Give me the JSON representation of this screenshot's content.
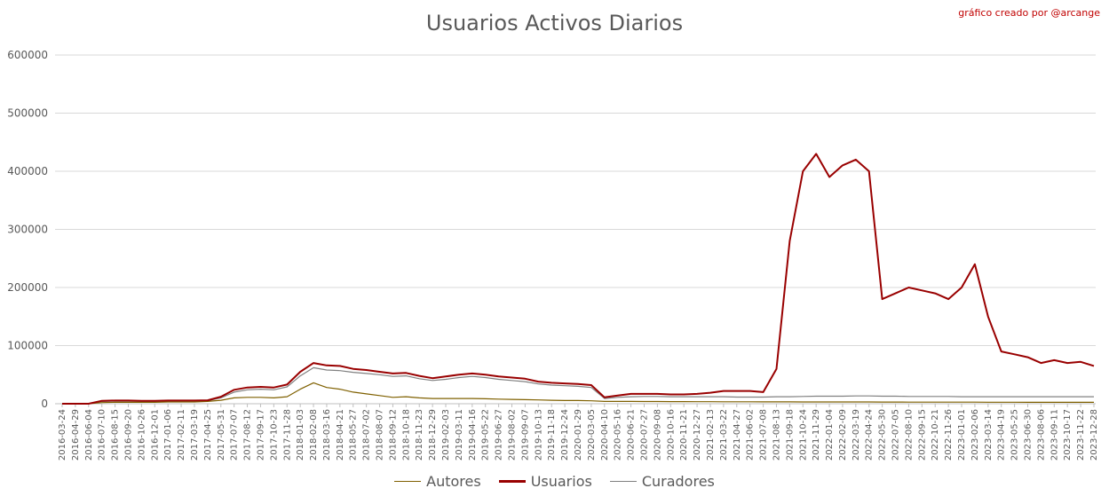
{
  "chart_data": {
    "type": "line",
    "title": "Usuarios Activos Diarios",
    "credit": "gráfico creado por @arcange",
    "ylim": [
      0,
      600000
    ],
    "y_ticks": [
      "0",
      "100000",
      "200000",
      "300000",
      "400000",
      "500000",
      "600000"
    ],
    "x_ticks": [
      "2016-03-24",
      "2016-04-29",
      "2016-06-04",
      "2016-07-10",
      "2016-08-15",
      "2016-09-20",
      "2016-10-26",
      "2016-12-01",
      "2017-01-06",
      "2017-02-11",
      "2017-03-19",
      "2017-04-25",
      "2017-05-31",
      "2017-07-07",
      "2017-08-12",
      "2017-09-17",
      "2017-10-23",
      "2017-11-28",
      "2018-01-03",
      "2018-02-08",
      "2018-03-16",
      "2018-04-21",
      "2018-05-27",
      "2018-07-02",
      "2018-08-07",
      "2018-09-12",
      "2018-10-18",
      "2018-11-23",
      "2018-12-29",
      "2019-02-03",
      "2019-03-11",
      "2019-04-16",
      "2019-05-22",
      "2019-06-27",
      "2019-08-02",
      "2019-09-07",
      "2019-10-13",
      "2019-11-18",
      "2019-12-24",
      "2020-01-29",
      "2020-03-05",
      "2020-04-10",
      "2020-05-16",
      "2020-06-21",
      "2020-07-27",
      "2020-09-08",
      "2020-10-16",
      "2020-11-21",
      "2020-12-27",
      "2021-02-13",
      "2021-03-22",
      "2021-04-27",
      "2021-06-02",
      "2021-07-08",
      "2021-08-13",
      "2021-09-18",
      "2021-10-24",
      "2021-11-29",
      "2022-01-04",
      "2022-02-09",
      "2022-03-19",
      "2022-04-24",
      "2022-05-30",
      "2022-07-05",
      "2022-08-10",
      "2022-09-15",
      "2022-10-21",
      "2022-11-26",
      "2023-01-01",
      "2023-02-06",
      "2023-03-14",
      "2023-04-19",
      "2023-05-25",
      "2023-06-30",
      "2023-08-06",
      "2023-09-11",
      "2023-10-17",
      "2023-11-22",
      "2023-12-28"
    ],
    "grid": true,
    "legend_position": "bottom",
    "series": [
      {
        "name": "Autores",
        "color": "#7f6000",
        "values": [
          0,
          0,
          0,
          2000,
          2500,
          2500,
          2500,
          2500,
          3000,
          3000,
          3000,
          4000,
          6000,
          10000,
          11000,
          11000,
          10000,
          12000,
          25000,
          36000,
          28000,
          25000,
          20000,
          17000,
          14000,
          11000,
          12000,
          10000,
          9000,
          9000,
          9000,
          9000,
          8500,
          8000,
          7500,
          7000,
          6500,
          6000,
          5500,
          5500,
          5000,
          4000,
          4000,
          4000,
          3800,
          3800,
          3600,
          3600,
          3500,
          3500,
          3400,
          3400,
          3300,
          3200,
          3200,
          3200,
          3100,
          3100,
          3000,
          3000,
          3000,
          3000,
          2900,
          2900,
          2800,
          2800,
          2800,
          2700,
          2700,
          2700,
          2600,
          2600,
          2600,
          2500,
          2500,
          2500,
          2400,
          2400,
          2400
        ]
      },
      {
        "name": "Usuarios",
        "color": "#990000",
        "values": [
          0,
          0,
          0,
          5000,
          5500,
          5500,
          5000,
          5000,
          5500,
          5500,
          5500,
          6000,
          12000,
          24000,
          28000,
          29000,
          28000,
          33000,
          55000,
          70000,
          66000,
          65000,
          60000,
          58000,
          55000,
          52000,
          53000,
          48000,
          44000,
          47000,
          50000,
          52000,
          50000,
          47000,
          45000,
          43000,
          38000,
          36000,
          35000,
          34000,
          32000,
          11000,
          14000,
          17000,
          17000,
          17000,
          16000,
          16000,
          17000,
          19000,
          22000,
          22000,
          22000,
          20000,
          60000,
          280000,
          400000,
          430000,
          390000,
          410000,
          420000,
          400000,
          180000,
          190000,
          200000,
          195000,
          190000,
          180000,
          200000,
          240000,
          150000,
          90000,
          85000,
          80000,
          70000,
          75000,
          70000,
          72000,
          65000
        ]
      },
      {
        "name": "Curadores",
        "color": "#808080",
        "values": [
          0,
          0,
          0,
          4000,
          4500,
          4500,
          4000,
          4000,
          4500,
          4500,
          4500,
          5000,
          10000,
          20000,
          24000,
          25000,
          24000,
          29000,
          48000,
          62000,
          58000,
          57000,
          54000,
          52000,
          50000,
          47000,
          48000,
          43000,
          40000,
          42000,
          45000,
          47000,
          45000,
          42000,
          40000,
          38000,
          34000,
          32000,
          31000,
          30000,
          28000,
          9000,
          11000,
          12000,
          12500,
          12500,
          12000,
          12000,
          12000,
          12000,
          12000,
          11500,
          11500,
          11500,
          12000,
          12000,
          12500,
          13000,
          13000,
          13000,
          13500,
          13500,
          13000,
          13000,
          12500,
          12500,
          12500,
          12500,
          12000,
          12000,
          12000,
          12000,
          12000,
          12000,
          12000,
          12000,
          12000,
          12000,
          12000
        ]
      }
    ]
  }
}
